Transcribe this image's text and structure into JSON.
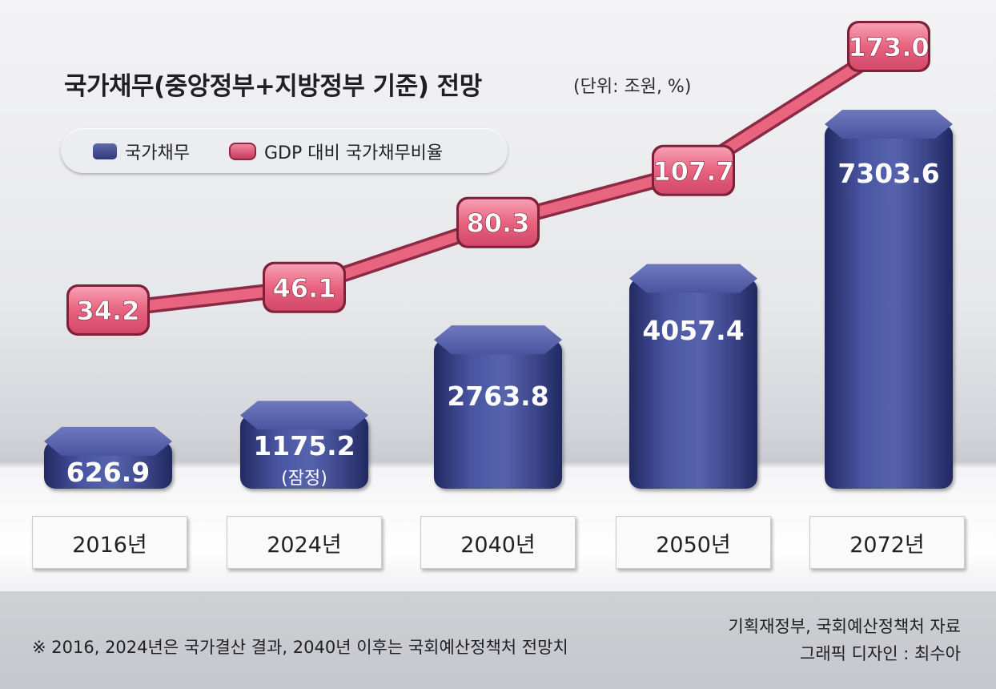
{
  "title": "국가채무(중앙정부+지방정부 기준) 전망",
  "unit": "(단위: 조원, %)",
  "legend": {
    "debt": "국가채무",
    "ratio": "GDP 대비 국가채무비율"
  },
  "colors": {
    "bar": "#3a4487",
    "ratio_line": "#e05a78"
  },
  "chart_data": {
    "type": "bar",
    "categories": [
      "2016년",
      "2024년",
      "2040년",
      "2050년",
      "2072년"
    ],
    "series": [
      {
        "name": "국가채무",
        "type": "bar",
        "values": [
          626.9,
          1175.2,
          2763.8,
          4057.4,
          7303.6
        ],
        "labels": [
          "626.9",
          "1175.2",
          "2763.8",
          "4057.4",
          "7303.6"
        ]
      },
      {
        "name": "GDP 대비 국가채무비율",
        "type": "line",
        "values": [
          34.2,
          46.1,
          80.3,
          107.7,
          173.0
        ],
        "labels": [
          "34.2",
          "46.1",
          "80.3",
          "107.7",
          "173.0"
        ]
      }
    ],
    "annotations": [
      "(잠정)"
    ]
  },
  "footer": {
    "note": "※ 2016, 2024년은 국가결산 결과, 2040년 이후는 국회예산정책처 전망치",
    "source": "기획재정부, 국회예산정책처 자료",
    "credit": "그래픽 디자인 : 최수아"
  }
}
